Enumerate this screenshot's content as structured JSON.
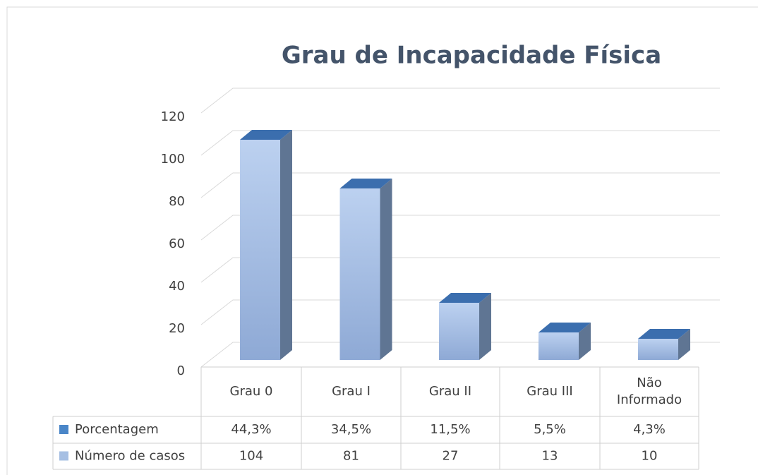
{
  "chart_data": {
    "type": "bar3d",
    "title": "Grau de Incapacidade Física",
    "categories": [
      "Grau 0",
      "Grau I",
      "Grau II",
      "Grau III",
      "Não Informado"
    ],
    "series": [
      {
        "name": "Porcentagem",
        "color": "#4a86c8",
        "values": [
          44.3,
          34.5,
          11.5,
          5.5,
          4.3
        ],
        "value_labels": [
          "44,3%",
          "34,5%",
          "11,5%",
          "5,5%",
          "4,3%"
        ]
      },
      {
        "name": "Número de casos",
        "color": "#a6bfe3",
        "values": [
          104,
          81,
          27,
          13,
          10
        ]
      }
    ],
    "ylim": [
      0,
      120
    ],
    "yticks": [
      0,
      20,
      40,
      60,
      80,
      100,
      120
    ],
    "grid": true
  }
}
